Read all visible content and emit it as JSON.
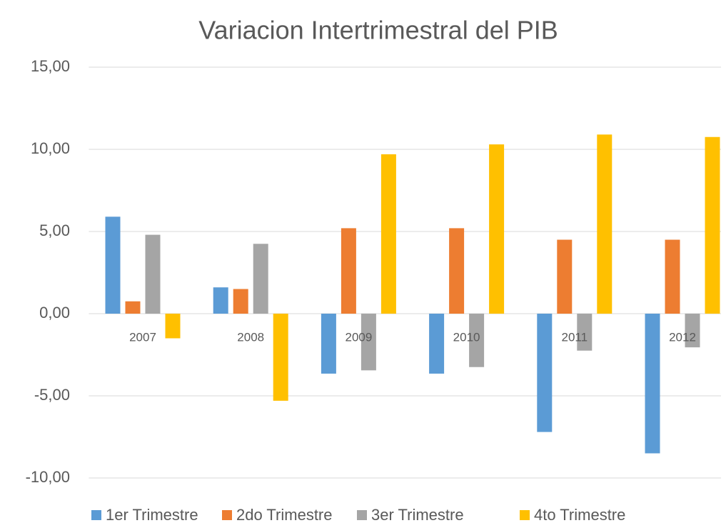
{
  "chart_data": {
    "type": "bar",
    "title": "Variacion Intertrimestral del PIB",
    "categories": [
      "2007",
      "2008",
      "2009",
      "2010",
      "2011",
      "2012"
    ],
    "series": [
      {
        "name": "1er Trimestre",
        "color": "#5b9bd5",
        "values": [
          5.9,
          1.6,
          -3.65,
          -3.65,
          -7.2,
          -8.5
        ]
      },
      {
        "name": "2do Trimestre",
        "color": "#ed7d31",
        "values": [
          0.75,
          1.5,
          5.2,
          5.2,
          4.5,
          4.5
        ]
      },
      {
        "name": "3er Trimestre",
        "color": "#a5a5a5",
        "values": [
          4.8,
          4.25,
          -3.45,
          -3.25,
          -2.25,
          -2.05
        ]
      },
      {
        "name": "4to Trimestre",
        "color": "#ffc000",
        "values": [
          -1.5,
          -5.3,
          9.7,
          10.3,
          10.9,
          10.75
        ]
      }
    ],
    "ylim": [
      -10,
      15
    ],
    "yticks": [
      {
        "value": -10,
        "label": "-10,00"
      },
      {
        "value": -5,
        "label": "-5,00"
      },
      {
        "value": 0,
        "label": "0,00"
      },
      {
        "value": 5,
        "label": "5,00"
      },
      {
        "value": 10,
        "label": "10,00"
      },
      {
        "value": 15,
        "label": "15,00"
      }
    ],
    "grid": true,
    "legend": "bottom"
  }
}
